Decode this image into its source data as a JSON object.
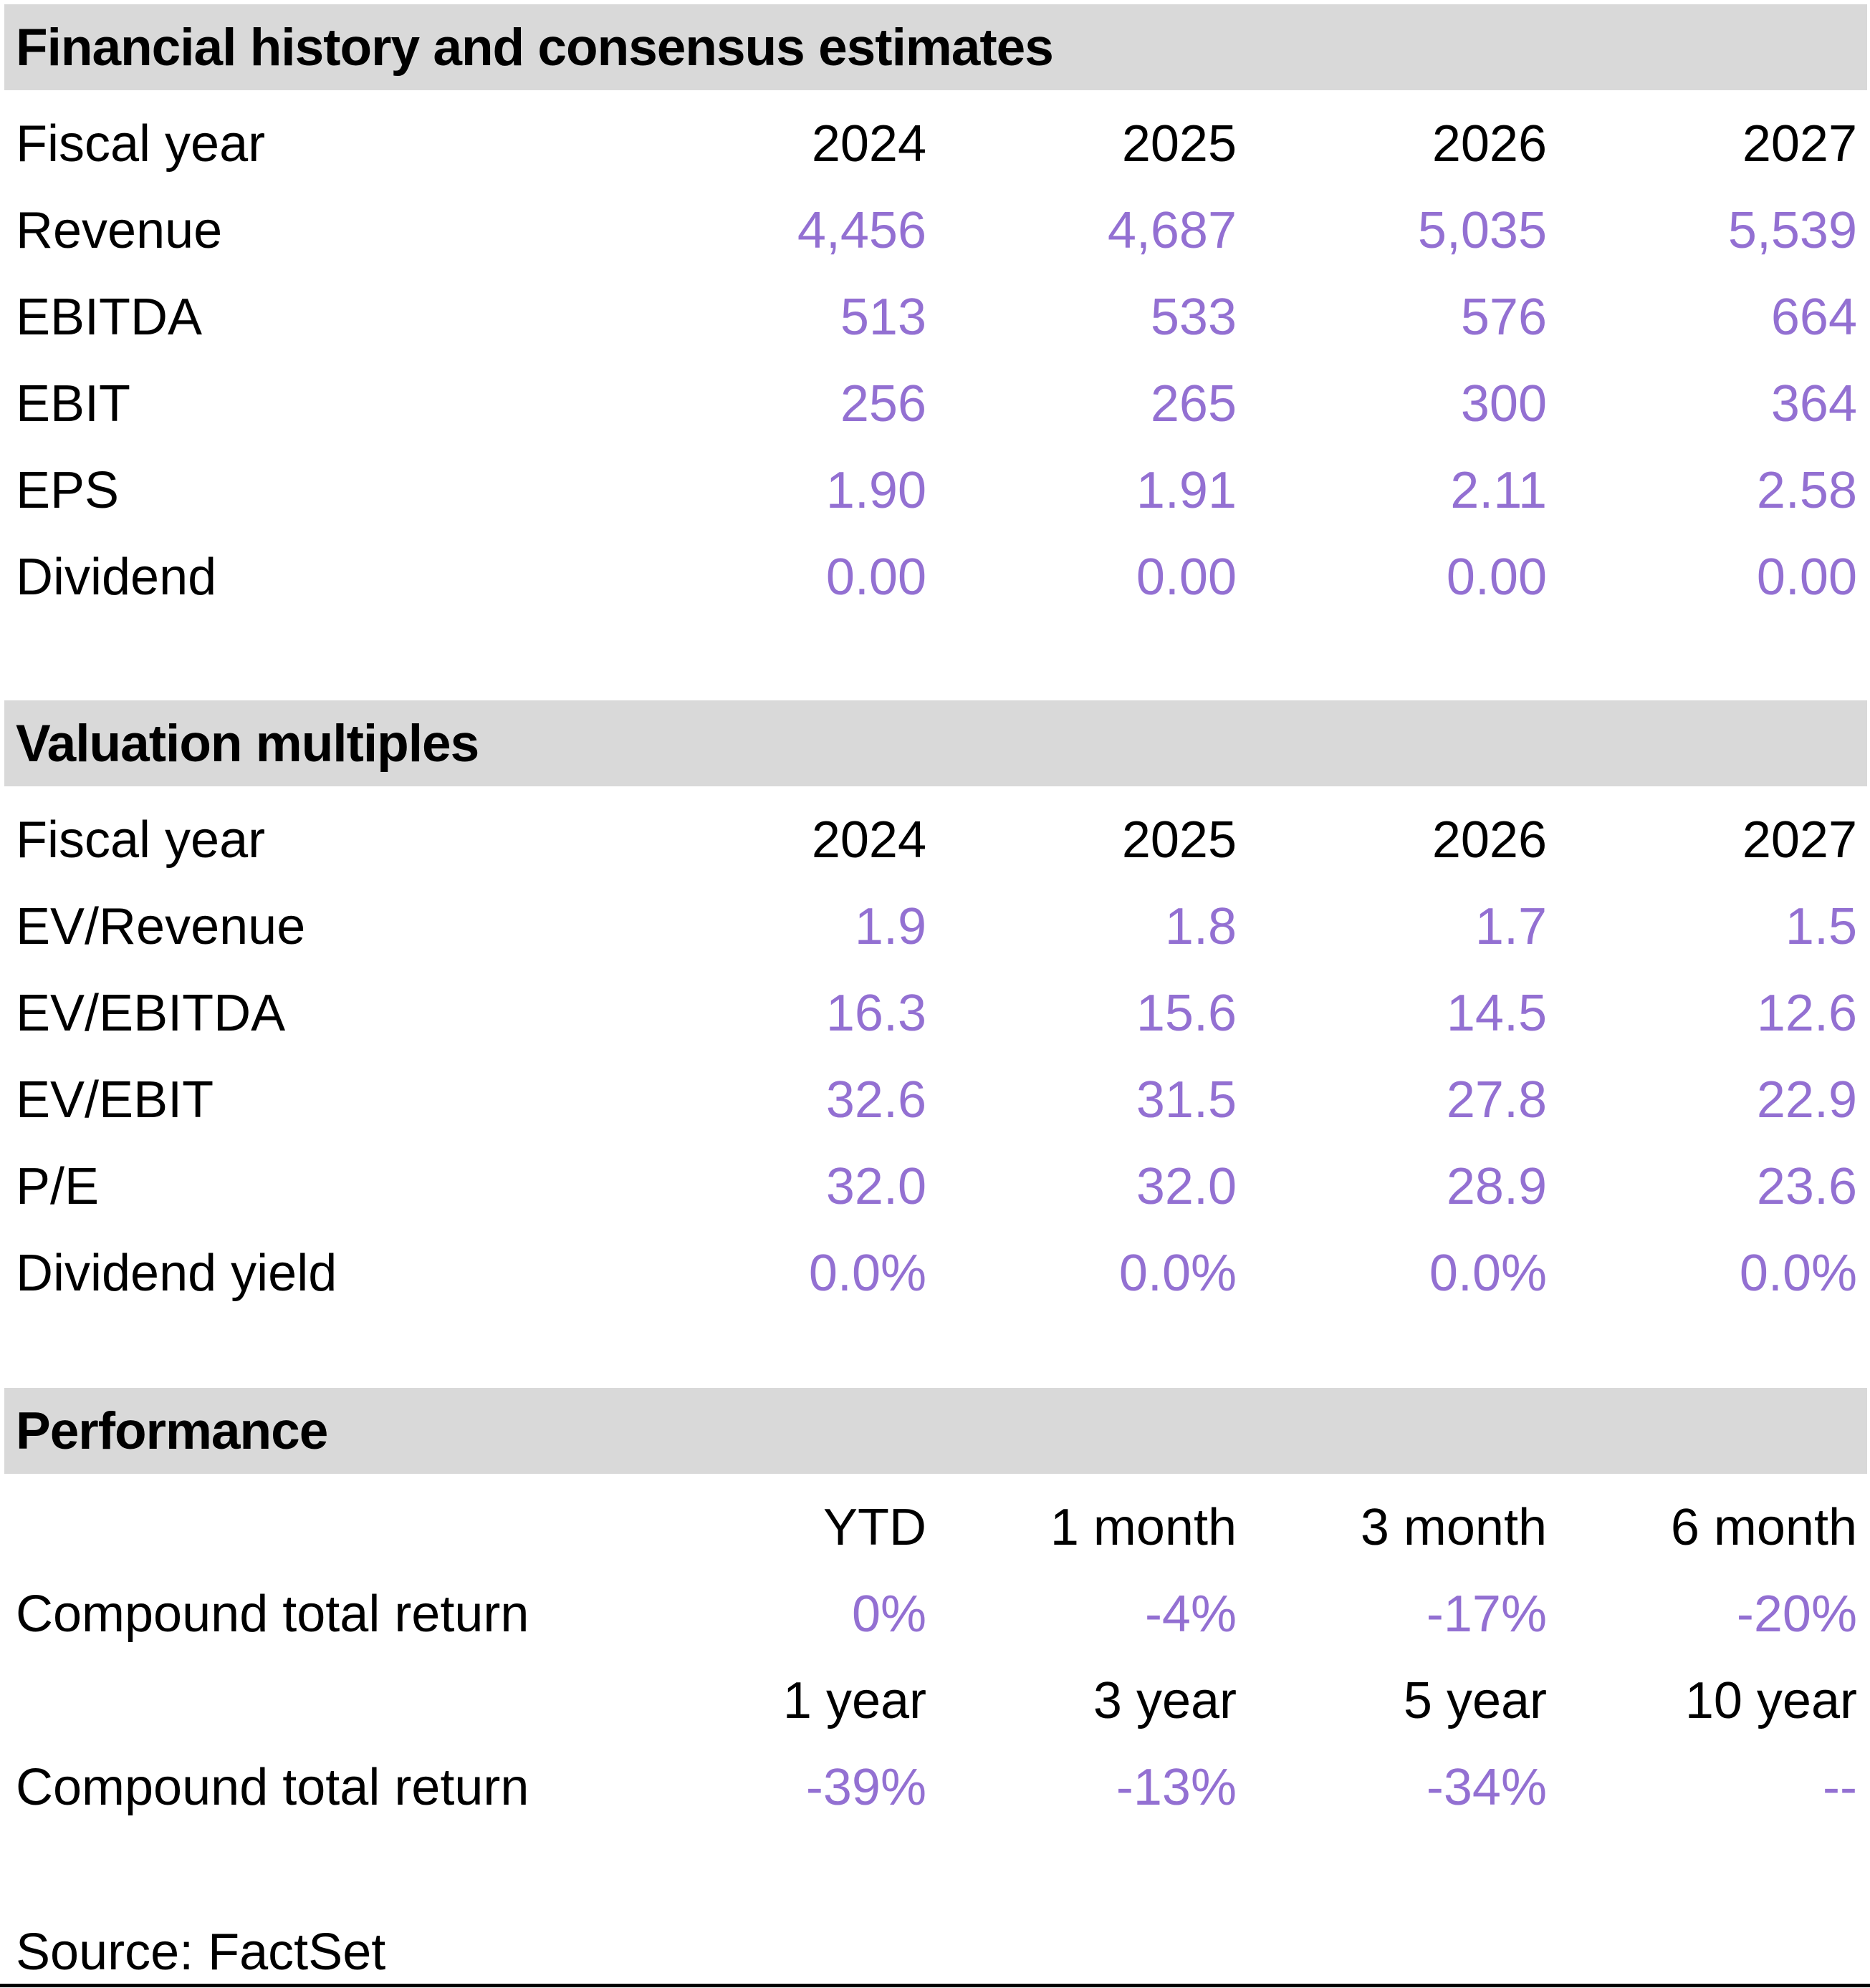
{
  "colors": {
    "value_accent": "#9370d2",
    "section_header_bg": "#d9d9d9",
    "text": "#000000"
  },
  "sections": {
    "financial": {
      "title": "Financial history and consensus estimates",
      "col_header_label": "Fiscal year",
      "col_headers": [
        "2024",
        "2025",
        "2026",
        "2027"
      ],
      "rows": [
        {
          "label": "Revenue",
          "values": [
            "4,456",
            "4,687",
            "5,035",
            "5,539"
          ]
        },
        {
          "label": "EBITDA",
          "values": [
            "513",
            "533",
            "576",
            "664"
          ]
        },
        {
          "label": "EBIT",
          "values": [
            "256",
            "265",
            "300",
            "364"
          ]
        },
        {
          "label": "EPS",
          "values": [
            "1.90",
            "1.91",
            "2.11",
            "2.58"
          ]
        },
        {
          "label": "Dividend",
          "values": [
            "0.00",
            "0.00",
            "0.00",
            "0.00"
          ]
        }
      ]
    },
    "valuation": {
      "title": "Valuation multiples",
      "col_header_label": "Fiscal year",
      "col_headers": [
        "2024",
        "2025",
        "2026",
        "2027"
      ],
      "rows": [
        {
          "label": "EV/Revenue",
          "values": [
            "1.9",
            "1.8",
            "1.7",
            "1.5"
          ]
        },
        {
          "label": "EV/EBITDA",
          "values": [
            "16.3",
            "15.6",
            "14.5",
            "12.6"
          ]
        },
        {
          "label": "EV/EBIT",
          "values": [
            "32.6",
            "31.5",
            "27.8",
            "22.9"
          ]
        },
        {
          "label": "P/E",
          "values": [
            "32.0",
            "32.0",
            "28.9",
            "23.6"
          ]
        },
        {
          "label": "Dividend yield",
          "values": [
            "0.0%",
            "0.0%",
            "0.0%",
            "0.0%"
          ]
        }
      ]
    },
    "performance": {
      "title": "Performance",
      "groups": [
        {
          "col_headers": [
            "YTD",
            "1 month",
            "3 month",
            "6 month"
          ],
          "row": {
            "label": "Compound total return",
            "values": [
              "0%",
              "-4%",
              "-17%",
              "-20%"
            ]
          }
        },
        {
          "col_headers": [
            "1 year",
            "3 year",
            "5 year",
            "10 year"
          ],
          "row": {
            "label": "Compound total return",
            "values": [
              "-39%",
              "-13%",
              "-34%",
              "--"
            ]
          }
        }
      ]
    }
  },
  "footer": {
    "source_note": "Source: FactSet"
  }
}
